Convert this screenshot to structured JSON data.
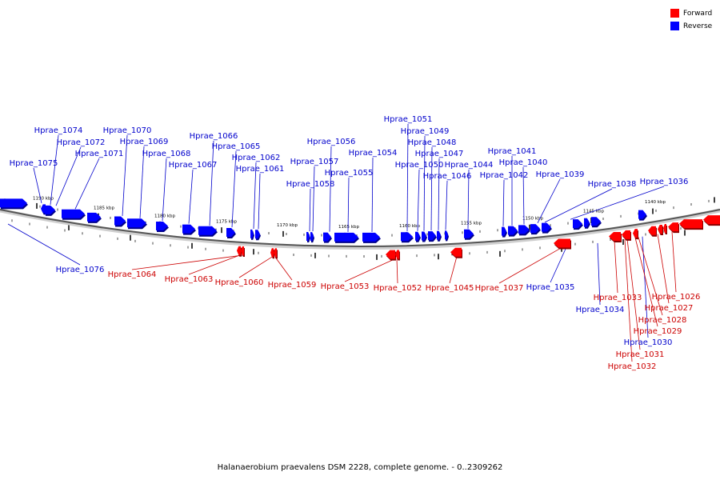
{
  "legend": [
    {
      "label": "Forward",
      "color": "#ff0000"
    },
    {
      "label": "Reverse",
      "color": "#0000ff"
    }
  ],
  "caption": "Halanaerobium praevalens DSM 2228, complete genome. - 0..2309262",
  "scale_labels": [
    "1190 kbp",
    "1185 kbp",
    "1180 kbp",
    "1175 kbp",
    "1170 kbp",
    "1165 kbp",
    "1160 kbp",
    "1155 kbp",
    "1150 kbp",
    "1145 kbp",
    "1140 kbp"
  ],
  "reverse_genes": [
    "Hprae_1076",
    "Hprae_1075",
    "Hprae_1074",
    "Hprae_1072",
    "Hprae_1071",
    "Hprae_1070",
    "Hprae_1069",
    "Hprae_1068",
    "Hprae_1067",
    "Hprae_1066",
    "Hprae_1065",
    "Hprae_1062",
    "Hprae_1061",
    "Hprae_1058",
    "Hprae_1057",
    "Hprae_1056",
    "Hprae_1055",
    "Hprae_1054",
    "Hprae_1051",
    "Hprae_1050",
    "Hprae_1049",
    "Hprae_1048",
    "Hprae_1047",
    "Hprae_1046",
    "Hprae_1044",
    "Hprae_1042",
    "Hprae_1041",
    "Hprae_1040",
    "Hprae_1039",
    "Hprae_1038",
    "Hprae_1036",
    "Hprae_1035",
    "Hprae_1034",
    "Hprae_1030"
  ],
  "forward_genes": [
    "Hprae_1064",
    "Hprae_1063",
    "Hprae_1060",
    "Hprae_1059",
    "Hprae_1053",
    "Hprae_1052",
    "Hprae_1045",
    "Hprae_1037",
    "Hprae_1033",
    "Hprae_1032",
    "Hprae_1031",
    "Hprae_1029",
    "Hprae_1028",
    "Hprae_1027",
    "Hprae_1026"
  ]
}
